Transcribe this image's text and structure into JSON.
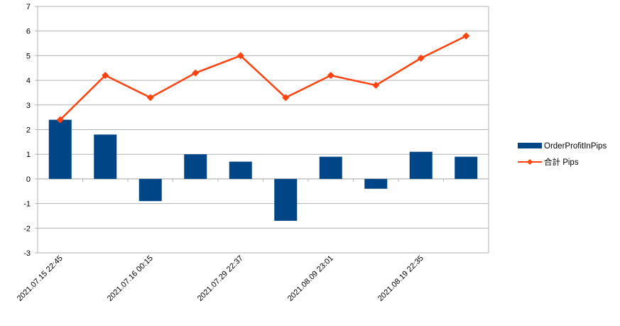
{
  "chart_data": {
    "type": "bar",
    "categories": [
      "2021.07.15 22:45",
      "",
      "2021.07.16 00:15",
      "",
      "2021.07.29 22:37",
      "",
      "2021.08.09 23:01",
      "",
      "2021.08.19 22:35",
      ""
    ],
    "series": [
      {
        "name": "OrderProfitInPips",
        "type": "bar",
        "color": "#004586",
        "values": [
          2.4,
          1.8,
          -0.9,
          1.0,
          0.7,
          -1.7,
          0.9,
          -0.4,
          1.1,
          0.9
        ]
      },
      {
        "name": "合計 Pips",
        "type": "line",
        "color": "#ff420e",
        "values": [
          2.4,
          4.2,
          3.3,
          4.3,
          5.0,
          3.3,
          4.2,
          3.8,
          4.9,
          5.8
        ]
      }
    ],
    "title": "",
    "xlabel": "",
    "ylabel": "",
    "ylim": [
      -3,
      7
    ],
    "yticks": [
      -3,
      -2,
      -1,
      0,
      1,
      2,
      3,
      4,
      5,
      6,
      7
    ],
    "grid": true,
    "legend_position": "right"
  }
}
